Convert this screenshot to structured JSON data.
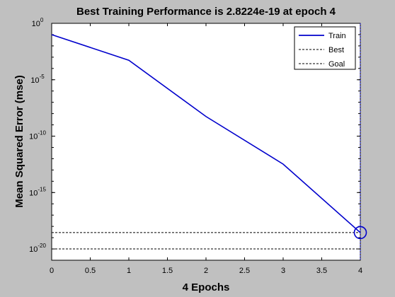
{
  "chart_data": {
    "type": "line",
    "title": "Best Training Performance is 2.8224e-19 at epoch 4",
    "xlabel": "4 Epochs",
    "ylabel": "Mean Squared Error  (mse)",
    "xlim": [
      0,
      4
    ],
    "ylim": [
      1e-21,
      1
    ],
    "yscale": "log",
    "grid": false,
    "legend_position": "top-right",
    "x_ticks": [
      {
        "value": 0,
        "label": "0"
      },
      {
        "value": 0.5,
        "label": "0.5"
      },
      {
        "value": 1,
        "label": "1"
      },
      {
        "value": 1.5,
        "label": "1.5"
      },
      {
        "value": 2,
        "label": "2"
      },
      {
        "value": 2.5,
        "label": "2.5"
      },
      {
        "value": 3,
        "label": "3"
      },
      {
        "value": 3.5,
        "label": "3.5"
      },
      {
        "value": 4,
        "label": "4"
      }
    ],
    "y_ticks": [
      {
        "value": 1,
        "base": "10",
        "exp": "0"
      },
      {
        "value": 1e-05,
        "base": "10",
        "exp": "-5"
      },
      {
        "value": 1e-10,
        "base": "10",
        "exp": "-10"
      },
      {
        "value": 1e-15,
        "base": "10",
        "exp": "-15"
      },
      {
        "value": 1e-20,
        "base": "10",
        "exp": "-20"
      }
    ],
    "series": [
      {
        "name": "Train",
        "color": "#0000cc",
        "style": "solid",
        "x": [
          0,
          1,
          2,
          3,
          4
        ],
        "y": [
          0.1,
          0.00053,
          5.5e-09,
          3.3e-13,
          2.8224e-19
        ]
      },
      {
        "name": "Best",
        "color": "#000000",
        "style": "dotted",
        "y_value": 2.8224e-19,
        "x_value": 4
      },
      {
        "name": "Goal",
        "color": "#000000",
        "style": "dotted",
        "y_value": 1e-20
      }
    ],
    "best_point": {
      "x": 4,
      "y": 2.8224e-19,
      "color": "#0000cc"
    }
  }
}
